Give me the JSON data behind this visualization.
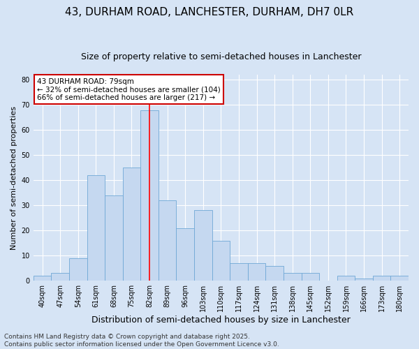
{
  "title": "43, DURHAM ROAD, LANCHESTER, DURHAM, DH7 0LR",
  "subtitle": "Size of property relative to semi-detached houses in Lanchester",
  "xlabel": "Distribution of semi-detached houses by size in Lanchester",
  "ylabel": "Number of semi-detached properties",
  "categories": [
    "40sqm",
    "47sqm",
    "54sqm",
    "61sqm",
    "68sqm",
    "75sqm",
    "82sqm",
    "89sqm",
    "96sqm",
    "103sqm",
    "110sqm",
    "117sqm",
    "124sqm",
    "131sqm",
    "138sqm",
    "145sqm",
    "152sqm",
    "159sqm",
    "166sqm",
    "173sqm",
    "180sqm"
  ],
  "values": [
    2,
    3,
    9,
    42,
    34,
    45,
    68,
    32,
    21,
    28,
    16,
    7,
    7,
    6,
    3,
    3,
    0,
    2,
    1,
    2,
    2
  ],
  "bar_color": "#c5d8f0",
  "bar_edge_color": "#6fa8d6",
  "red_line_index": 6,
  "ylim": [
    0,
    82
  ],
  "yticks": [
    0,
    10,
    20,
    30,
    40,
    50,
    60,
    70,
    80
  ],
  "annotation_text": "43 DURHAM ROAD: 79sqm\n← 32% of semi-detached houses are smaller (104)\n66% of semi-detached houses are larger (217) →",
  "annotation_box_color": "#ffffff",
  "annotation_box_edge": "#cc0000",
  "footer_line1": "Contains HM Land Registry data © Crown copyright and database right 2025.",
  "footer_line2": "Contains public sector information licensed under the Open Government Licence v3.0.",
  "background_color": "#d6e4f5",
  "plot_background": "#d6e4f5",
  "grid_color": "#ffffff",
  "title_fontsize": 11,
  "subtitle_fontsize": 9,
  "xlabel_fontsize": 9,
  "ylabel_fontsize": 8,
  "tick_fontsize": 7,
  "annotation_fontsize": 7.5,
  "footer_fontsize": 6.5
}
